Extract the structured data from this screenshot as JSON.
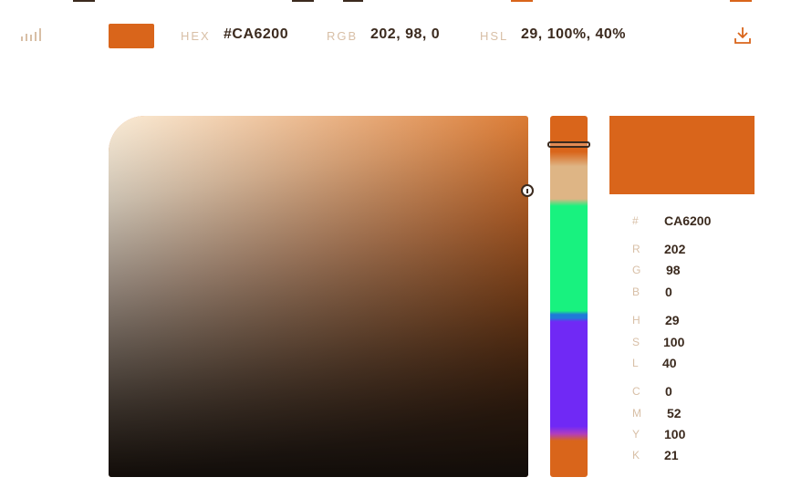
{
  "colors": {
    "accent": "#CA6200",
    "swatch": "#D9651B",
    "dark": "#3B2A1E",
    "label": "#D8BFA6"
  },
  "header": {
    "bars_icon": "signal-bars-icon",
    "hex_label": "HEX",
    "hex_value": "#CA6200",
    "rgb_label": "RGB",
    "rgb_value": "202, 98, 0",
    "hsl_label": "HSL",
    "hsl_value": "29, 100%, 40%",
    "download_icon": "download-icon"
  },
  "picker": {
    "hue": 29
  },
  "values": {
    "hex": {
      "label": "#",
      "value": "CA6200"
    },
    "r": {
      "label": "R",
      "value": "202"
    },
    "g": {
      "label": "G",
      "value": "98"
    },
    "b": {
      "label": "B",
      "value": "0"
    },
    "h": {
      "label": "H",
      "value": "29"
    },
    "s": {
      "label": "S",
      "value": "100"
    },
    "l": {
      "label": "L",
      "value": "40"
    },
    "c": {
      "label": "C",
      "value": "0"
    },
    "m": {
      "label": "M",
      "value": "52"
    },
    "y": {
      "label": "Y",
      "value": "100"
    },
    "k": {
      "label": "K",
      "value": "21"
    }
  }
}
